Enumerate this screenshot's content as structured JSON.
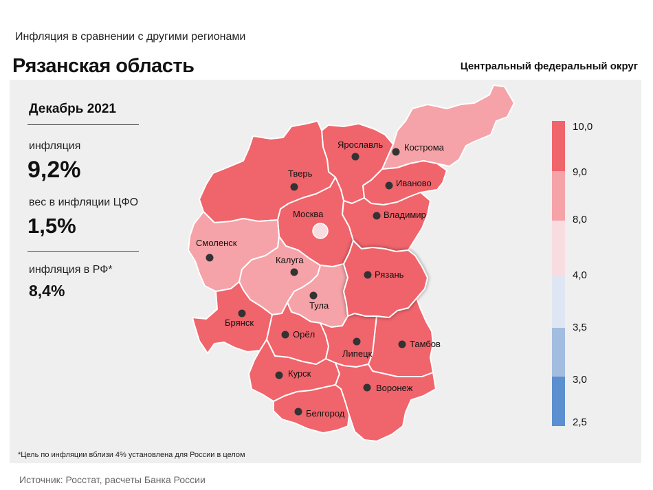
{
  "header": {
    "subtitle": "Инфляция  в сравнении  с другими  регионами",
    "region": "Рязанская область",
    "district": "Центральный федеральный округ"
  },
  "stats": {
    "period": "Декабрь 2021",
    "inflation_label": "инфляция",
    "inflation_value": "9,2%",
    "weight_label": "вес в инфляции  ЦФО",
    "weight_value": "1,5%",
    "rf_label": "инфляция  в РФ*",
    "rf_value": "8,4%"
  },
  "footnote": "*Цель по инфляции вблизи 4% установлена для России в целом",
  "source": "Источник: Росстат, расчеты Банка России",
  "colors": {
    "bin_9_10": "#f0646b",
    "bin_8_9": "#f5a3a8",
    "bin_4_8": "#f8dde0",
    "bin_35_4": "#dfe6f3",
    "bin_3_35": "#a3bde0",
    "bin_25_3": "#5b8fd0",
    "selected_outline": "#555555"
  },
  "legend": {
    "labels": [
      "10,0",
      "9,0",
      "8,0",
      "4,0",
      "3,5",
      "3,0",
      "2,5"
    ]
  },
  "regions": [
    {
      "name": "Ярославль",
      "bin": "9-10"
    },
    {
      "name": "Кострома",
      "bin": "8-9"
    },
    {
      "name": "Тверь",
      "bin": "9-10"
    },
    {
      "name": "Иваново",
      "bin": "9-10"
    },
    {
      "name": "Москва",
      "bin": "9-10"
    },
    {
      "name": "Владимир",
      "bin": "9-10"
    },
    {
      "name": "Смоленск",
      "bin": "8-9"
    },
    {
      "name": "Калуга",
      "bin": "8-9"
    },
    {
      "name": "Рязань",
      "bin": "9-10",
      "selected": true
    },
    {
      "name": "Тула",
      "bin": "8-9"
    },
    {
      "name": "Брянск",
      "bin": "9-10"
    },
    {
      "name": "Орёл",
      "bin": "9-10"
    },
    {
      "name": "Липецк",
      "bin": "9-10"
    },
    {
      "name": "Тамбов",
      "bin": "9-10"
    },
    {
      "name": "Курск",
      "bin": "9-10"
    },
    {
      "name": "Воронеж",
      "bin": "9-10"
    },
    {
      "name": "Белгород",
      "bin": "9-10"
    }
  ]
}
